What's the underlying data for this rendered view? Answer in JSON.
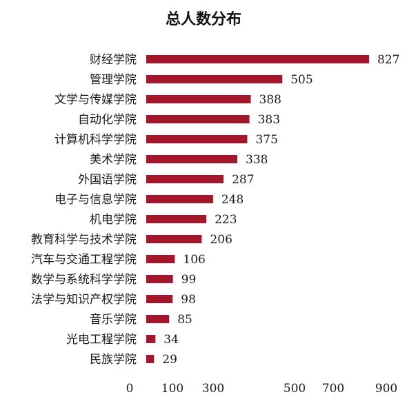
{
  "chart_data": {
    "type": "bar",
    "orientation": "horizontal",
    "title": "总人数分布",
    "xlabel": "",
    "ylabel": "",
    "categories": [
      "财经学院",
      "管理学院",
      "文学与传媒学院",
      "自动化学院",
      "计算机科学学院",
      "美术学院",
      "外国语学院",
      "电子与信息学院",
      "机电学院",
      "教育科学与技术学院",
      "汽车与交通工程学院",
      "数学与系统科学学院",
      "法学与知识产权学院",
      "音乐学院",
      "光电工程学院",
      "民族学院"
    ],
    "values": [
      827,
      505,
      388,
      383,
      375,
      338,
      287,
      248,
      223,
      206,
      106,
      99,
      98,
      85,
      34,
      29
    ],
    "x_ticks": [
      "0",
      "100",
      "300",
      "500",
      "700",
      "900"
    ],
    "xlim": [
      0,
      900
    ],
    "bar_color": "#a3162b",
    "grid": false,
    "legend": "none"
  }
}
